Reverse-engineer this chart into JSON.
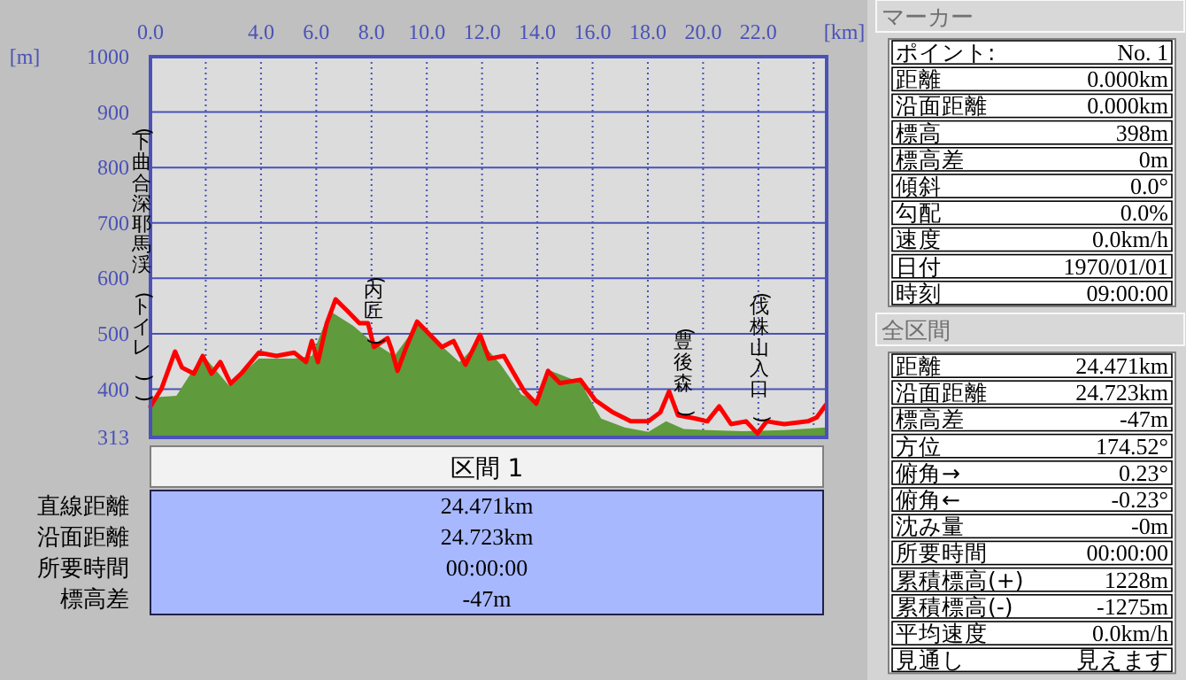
{
  "chart_data": [
    {
      "type": "area",
      "xlabel": "[km]",
      "ylabel": "[m]",
      "xlim": [
        0,
        24.471
      ],
      "ylim": [
        313,
        1000
      ],
      "xticks": [
        {
          "value": 0,
          "label": "0.0"
        },
        {
          "value": 2,
          "label": null
        },
        {
          "value": 4,
          "label": "4.0"
        },
        {
          "value": 6,
          "label": "6.0"
        },
        {
          "value": 8,
          "label": "8.0"
        },
        {
          "value": 10,
          "label": "10.0"
        },
        {
          "value": 12,
          "label": "12.0"
        },
        {
          "value": 14,
          "label": "14.0"
        },
        {
          "value": 16,
          "label": "16.0"
        },
        {
          "value": 18,
          "label": "18.0"
        },
        {
          "value": 20,
          "label": "20.0"
        },
        {
          "value": 22,
          "label": "22.0"
        },
        {
          "value": 24,
          "label": null
        }
      ],
      "yticks": [
        313,
        400,
        500,
        600,
        700,
        800,
        900,
        1000
      ],
      "grid": true,
      "series": [
        {
          "type": "area",
          "color": "#5f9a3c",
          "x": [
            0,
            0.94,
            1.89,
            2.85,
            3.92,
            5.2,
            5.84,
            6.49,
            7.35,
            7.98,
            8.83,
            9.69,
            10.33,
            11.18,
            11.93,
            12.68,
            13.43,
            13.96,
            14.5,
            15.56,
            16.31,
            17.16,
            18.02,
            18.66,
            19.3,
            20.15,
            21.44,
            22.94,
            24.43
          ],
          "values": [
            385,
            388,
            462,
            406,
            455,
            455,
            460,
            541,
            514,
            487,
            460,
            519,
            487,
            449,
            487,
            444,
            390,
            380,
            433,
            412,
            347,
            331,
            323,
            342,
            328,
            326,
            324,
            326,
            331
          ]
        },
        {
          "type": "line",
          "color": "#ff0000",
          "x": [
            0,
            0.4,
            0.89,
            1.14,
            1.57,
            1.89,
            2.21,
            2.53,
            2.9,
            3.28,
            3.92,
            4.56,
            5.2,
            5.63,
            5.84,
            6.06,
            6.38,
            6.7,
            7.13,
            7.56,
            7.87,
            8.09,
            8.58,
            8.73,
            8.94,
            9.26,
            9.65,
            10.12,
            10.55,
            10.97,
            11.4,
            11.93,
            12.25,
            12.79,
            13.1,
            13.53,
            13.96,
            14.39,
            14.82,
            15.56,
            16.1,
            16.74,
            17.38,
            18.02,
            18.45,
            18.77,
            19.09,
            19.73,
            20.15,
            20.58,
            21.01,
            21.55,
            21.97,
            22.3,
            22.94,
            23.79,
            24.11,
            24.43
          ],
          "values": [
            369,
            401,
            468,
            439,
            428,
            460,
            428,
            449,
            410,
            428,
            466,
            460,
            466,
            449,
            487,
            449,
            519,
            562,
            541,
            519,
            519,
            476,
            492,
            471,
            433,
            476,
            522,
            498,
            476,
            487,
            444,
            498,
            455,
            460,
            433,
            396,
            374,
            433,
            411,
            417,
            380,
            358,
            342,
            342,
            358,
            396,
            353,
            347,
            342,
            369,
            337,
            342,
            320,
            342,
            337,
            342,
            349,
            371
          ]
        }
      ],
      "annotations": [
        "(下曲合深耶馬渓(トイレ))",
        "(内匠)",
        "(豊後森)",
        "(伐株山入口)"
      ]
    },
    {
      "type": "other",
      "title": "区間 1",
      "annotations": [
        "直線距離",
        "24.471km",
        "沿面距離",
        "24.723km",
        "所要時間",
        "00:00:00",
        "標高差",
        "-47m"
      ]
    },
    {
      "type": "other",
      "title": "マーカー",
      "annotations": [
        "ポイント:",
        "No. 1",
        "距離",
        "0.000km",
        "沿面距離",
        "0.000km",
        "標高",
        "398m",
        "標高差",
        "0m",
        "傾斜",
        "0.0°",
        "勾配",
        "0.0%",
        "速度",
        "0.0km/h",
        "日付",
        "1970/01/01",
        "時刻",
        "09:00:00"
      ]
    },
    {
      "type": "other",
      "title": "全区間",
      "annotations": [
        "距離",
        "24.471km",
        "沿面距離",
        "24.723km",
        "標高差",
        "-47m",
        "方位",
        "174.52°",
        "俯角→",
        "0.23°",
        "俯角←",
        "-0.23°",
        "沈み量",
        "-0m",
        "所要時間",
        "00:00:00",
        "累積標高(+)",
        "1228m",
        "累積標高(-)",
        "-1275m",
        "平均速度",
        "0.0km/h",
        "見通し",
        "見えます"
      ]
    }
  ]
}
